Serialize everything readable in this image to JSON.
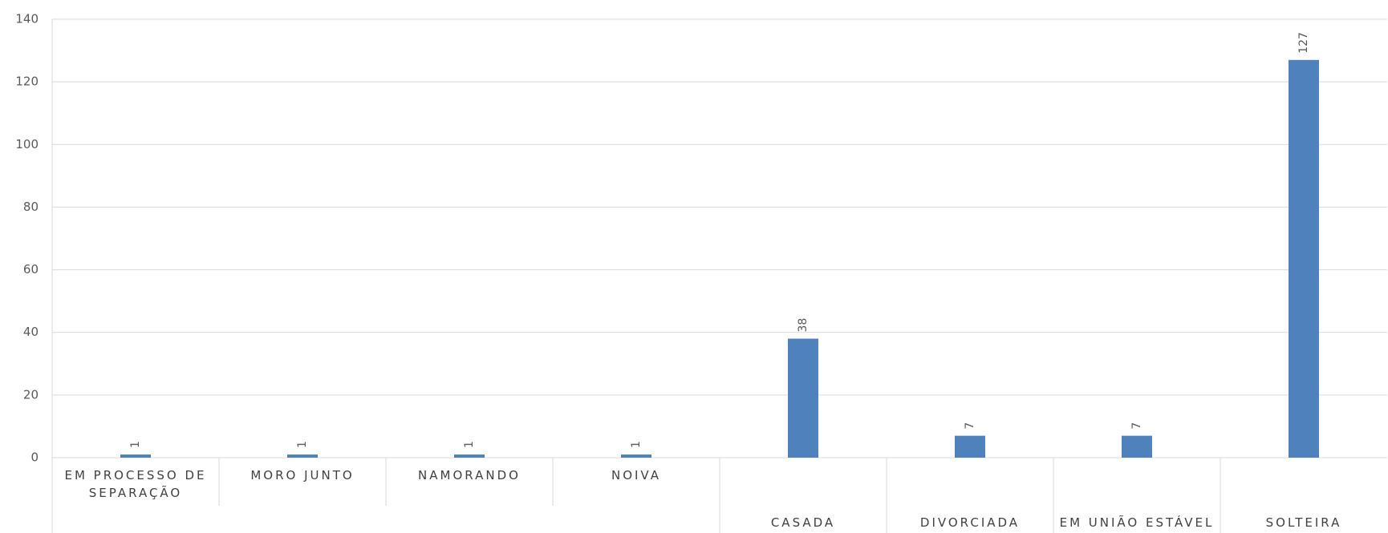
{
  "chart_data": {
    "type": "bar",
    "categories": [
      "EM PROCESSO DE SEPARAÇÃO",
      "MORO JUNTO",
      "NAMORANDO",
      "NOIVA",
      "CASADA",
      "DIVORCIADA",
      "EM UNIÃO ESTÁVEL",
      "SOLTEIRA"
    ],
    "values": [
      1,
      1,
      1,
      1,
      38,
      7,
      7,
      127
    ],
    "color": "#4f81bd",
    "ylim": [
      0,
      140
    ],
    "yticks": [
      0,
      20,
      40,
      60,
      80,
      100,
      120,
      140
    ],
    "grid": true
  }
}
